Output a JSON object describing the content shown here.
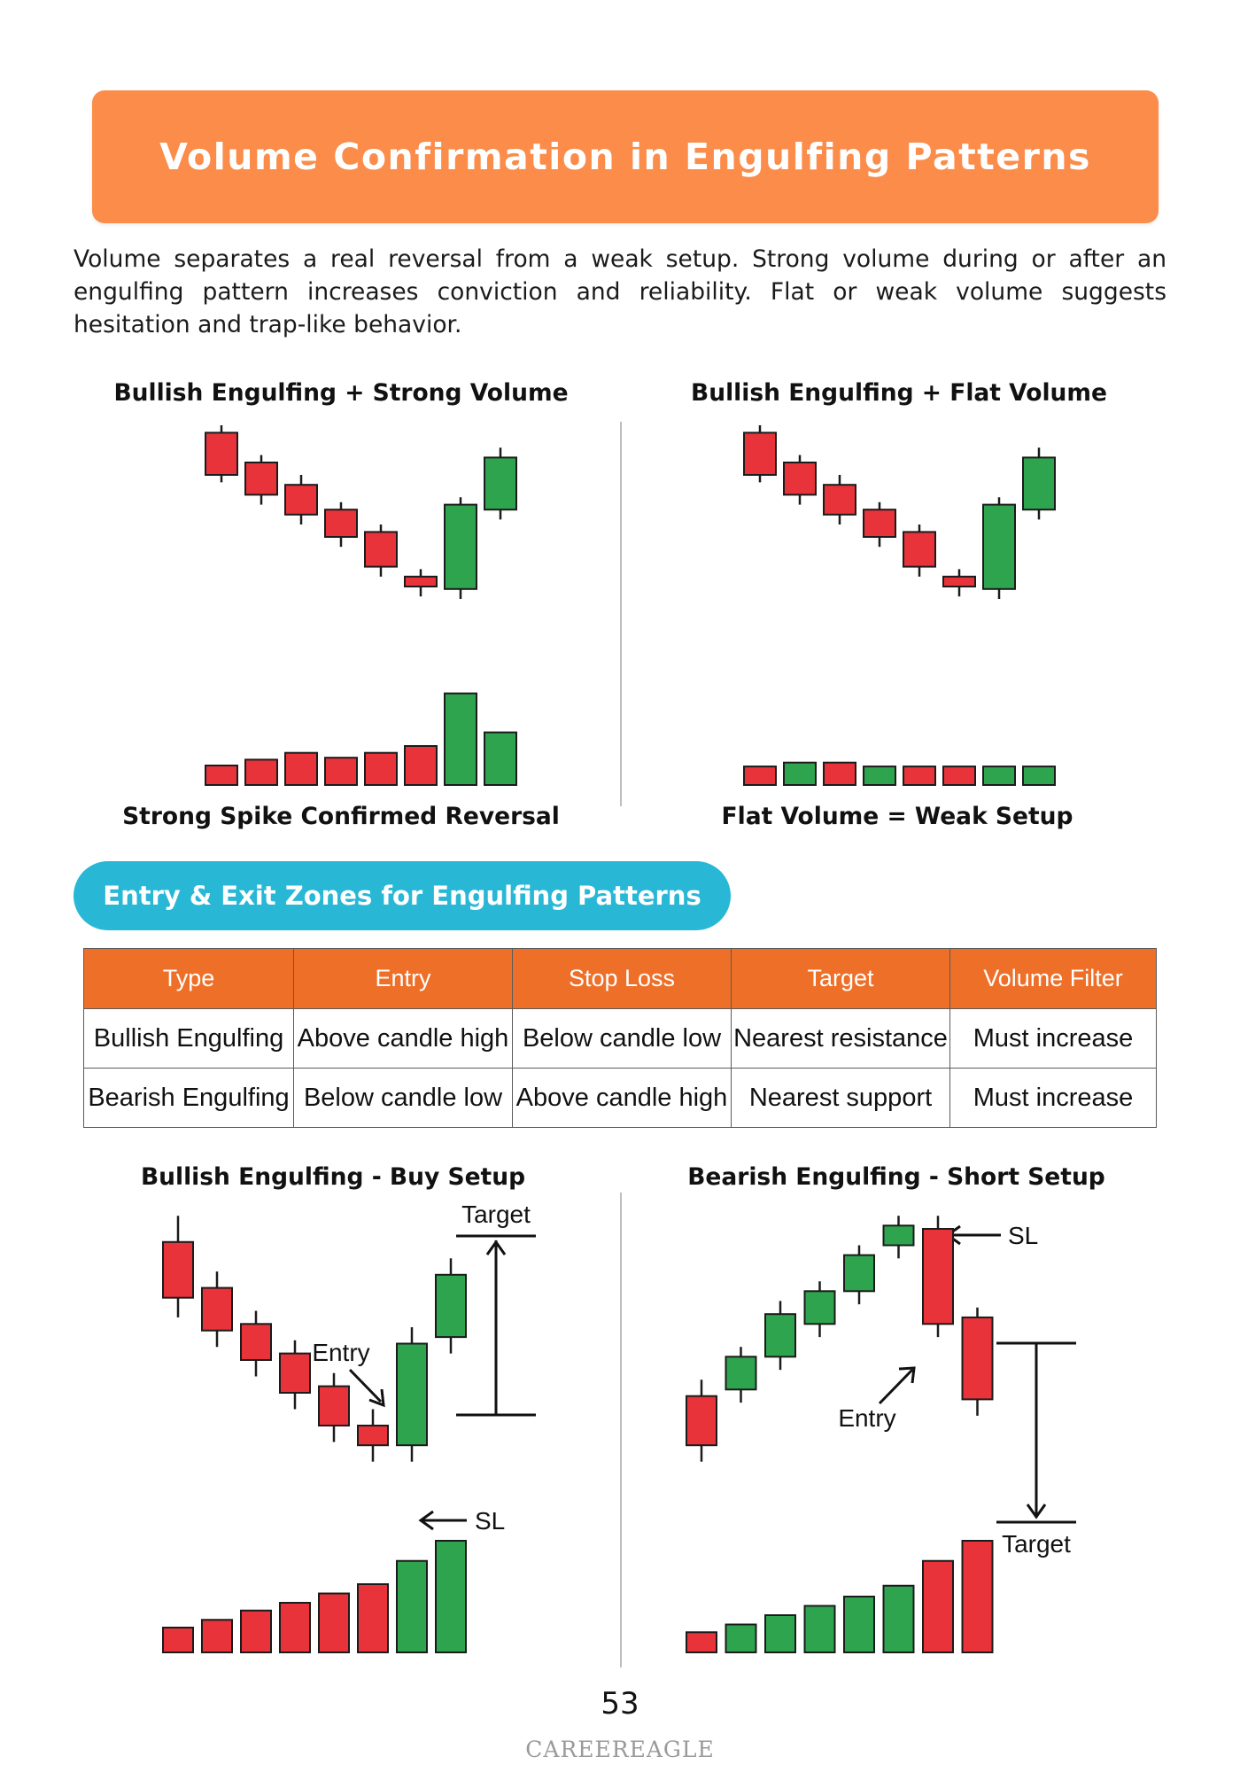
{
  "title": "Volume Confirmation in Engulfing Patterns",
  "intro": "Volume separates a real reversal from a weak setup. Strong volume during or after an engulfing pattern increases conviction and reliability. Flat or weak volume suggests hesitation and trap-like behavior.",
  "colors": {
    "bull": "#2ea44f",
    "bear": "#e8333a",
    "accent": "#fb8c4a",
    "pill": "#29b7d6"
  },
  "panels": {
    "strong": {
      "title": "Bullish Engulfing + Strong Volume",
      "caption": "Strong Spike Confirmed Reversal"
    },
    "flat": {
      "title": "Bullish Engulfing + Flat Volume",
      "caption": "Flat Volume = Weak Setup"
    },
    "buy": {
      "title": "Bullish Engulfing - Buy Setup",
      "target_label": "Target",
      "entry_label": "Entry",
      "sl_label": "SL"
    },
    "short": {
      "title": "Bearish Engulfing - Short Setup",
      "target_label": "Target",
      "entry_label": "Entry",
      "sl_label": "SL"
    }
  },
  "zones": {
    "heading": "Entry & Exit Zones for Engulfing Patterns",
    "columns": [
      "Type",
      "Entry",
      "Stop Loss",
      "Target",
      "Volume Filter"
    ],
    "rows": [
      [
        "Bullish Engulfing",
        "Above candle high",
        "Below candle low",
        "Nearest resistance",
        "Must increase"
      ],
      [
        "Bearish Engulfing",
        "Below candle low",
        "Above candle high",
        "Nearest support",
        "Must increase"
      ]
    ]
  },
  "chart_data": [
    {
      "type": "candlestick",
      "title": "Bullish Engulfing + Strong Volume",
      "caption": "Strong Spike Confirmed Reversal",
      "candles": [
        {
          "dir": "bear",
          "open": 97,
          "close": 80,
          "high": 100,
          "low": 77
        },
        {
          "dir": "bear",
          "open": 85,
          "close": 72,
          "high": 88,
          "low": 68
        },
        {
          "dir": "bear",
          "open": 76,
          "close": 64,
          "high": 80,
          "low": 60
        },
        {
          "dir": "bear",
          "open": 66,
          "close": 55,
          "high": 69,
          "low": 51
        },
        {
          "dir": "bear",
          "open": 57,
          "close": 43,
          "high": 60,
          "low": 39
        },
        {
          "dir": "bear",
          "open": 39,
          "close": 35,
          "high": 42,
          "low": 31
        },
        {
          "dir": "bull",
          "open": 34,
          "close": 68,
          "high": 71,
          "low": 30
        },
        {
          "dir": "bull",
          "open": 66,
          "close": 87,
          "high": 91,
          "low": 62
        }
      ],
      "volume": [
        {
          "dir": "bear",
          "value": 20
        },
        {
          "dir": "bear",
          "value": 26
        },
        {
          "dir": "bear",
          "value": 33
        },
        {
          "dir": "bear",
          "value": 28
        },
        {
          "dir": "bear",
          "value": 33
        },
        {
          "dir": "bear",
          "value": 40
        },
        {
          "dir": "bull",
          "value": 94
        },
        {
          "dir": "bull",
          "value": 54
        }
      ]
    },
    {
      "type": "candlestick",
      "title": "Bullish Engulfing + Flat Volume",
      "caption": "Flat Volume = Weak Setup",
      "candles": [
        {
          "dir": "bear",
          "open": 97,
          "close": 80,
          "high": 100,
          "low": 77
        },
        {
          "dir": "bear",
          "open": 85,
          "close": 72,
          "high": 88,
          "low": 68
        },
        {
          "dir": "bear",
          "open": 76,
          "close": 64,
          "high": 80,
          "low": 60
        },
        {
          "dir": "bear",
          "open": 66,
          "close": 55,
          "high": 69,
          "low": 51
        },
        {
          "dir": "bear",
          "open": 57,
          "close": 43,
          "high": 60,
          "low": 39
        },
        {
          "dir": "bear",
          "open": 39,
          "close": 35,
          "high": 42,
          "low": 31
        },
        {
          "dir": "bull",
          "open": 34,
          "close": 68,
          "high": 71,
          "low": 30
        },
        {
          "dir": "bull",
          "open": 66,
          "close": 87,
          "high": 91,
          "low": 62
        }
      ],
      "volume": [
        {
          "dir": "bear",
          "value": 19
        },
        {
          "dir": "bull",
          "value": 23
        },
        {
          "dir": "bear",
          "value": 23
        },
        {
          "dir": "bull",
          "value": 19
        },
        {
          "dir": "bear",
          "value": 19
        },
        {
          "dir": "bear",
          "value": 19
        },
        {
          "dir": "bull",
          "value": 19
        },
        {
          "dir": "bull",
          "value": 19
        }
      ]
    },
    {
      "type": "candlestick",
      "title": "Bullish Engulfing - Buy Setup",
      "annotations": [
        "Target",
        "Entry",
        "SL"
      ],
      "candles": [
        {
          "dir": "bear",
          "open": 86,
          "close": 69,
          "high": 94,
          "low": 63
        },
        {
          "dir": "bear",
          "open": 72,
          "close": 59,
          "high": 77,
          "low": 54
        },
        {
          "dir": "bear",
          "open": 61,
          "close": 50,
          "high": 65,
          "low": 45
        },
        {
          "dir": "bear",
          "open": 52,
          "close": 40,
          "high": 56,
          "low": 35
        },
        {
          "dir": "bear",
          "open": 42,
          "close": 30,
          "high": 46,
          "low": 25
        },
        {
          "dir": "bear",
          "open": 30,
          "close": 24,
          "high": 35,
          "low": 19
        },
        {
          "dir": "bull",
          "open": 24,
          "close": 55,
          "high": 60,
          "low": 19
        },
        {
          "dir": "bull",
          "open": 57,
          "close": 76,
          "high": 81,
          "low": 52
        }
      ],
      "volume": [
        {
          "dir": "bear",
          "value": 16
        },
        {
          "dir": "bear",
          "value": 21
        },
        {
          "dir": "bear",
          "value": 27
        },
        {
          "dir": "bear",
          "value": 32
        },
        {
          "dir": "bear",
          "value": 38
        },
        {
          "dir": "bear",
          "value": 44
        },
        {
          "dir": "bull",
          "value": 59
        },
        {
          "dir": "bull",
          "value": 72
        }
      ]
    },
    {
      "type": "candlestick",
      "title": "Bearish Engulfing - Short Setup",
      "annotations": [
        "SL",
        "Entry",
        "Target"
      ],
      "candles": [
        {
          "dir": "bear",
          "open": 39,
          "close": 24,
          "high": 44,
          "low": 19
        },
        {
          "dir": "bull",
          "open": 41,
          "close": 51,
          "high": 54,
          "low": 37
        },
        {
          "dir": "bull",
          "open": 51,
          "close": 64,
          "high": 68,
          "low": 47
        },
        {
          "dir": "bull",
          "open": 61,
          "close": 71,
          "high": 74,
          "low": 57
        },
        {
          "dir": "bull",
          "open": 71,
          "close": 82,
          "high": 85,
          "low": 67
        },
        {
          "dir": "bull",
          "open": 85,
          "close": 91,
          "high": 94,
          "low": 81
        },
        {
          "dir": "bear",
          "open": 90,
          "close": 61,
          "high": 94,
          "low": 57
        },
        {
          "dir": "bear",
          "open": 63,
          "close": 38,
          "high": 66,
          "low": 33
        }
      ],
      "volume": [
        {
          "dir": "bear",
          "value": 13
        },
        {
          "dir": "bull",
          "value": 18
        },
        {
          "dir": "bull",
          "value": 24
        },
        {
          "dir": "bull",
          "value": 30
        },
        {
          "dir": "bull",
          "value": 36
        },
        {
          "dir": "bull",
          "value": 43
        },
        {
          "dir": "bear",
          "value": 59
        },
        {
          "dir": "bear",
          "value": 72
        }
      ]
    }
  ],
  "page_number": "53",
  "brand": "CAREEREAGLE"
}
